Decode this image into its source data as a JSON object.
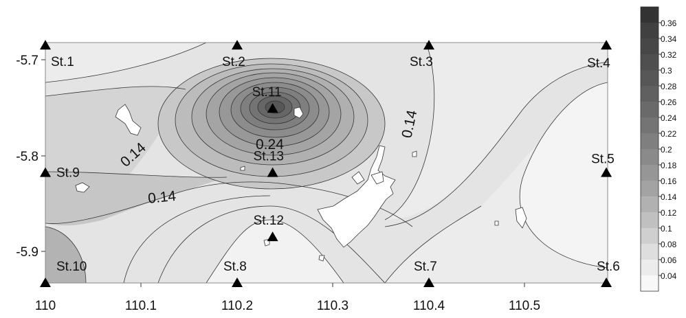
{
  "map": {
    "x_ticks": [
      "110",
      "110.1",
      "110.2",
      "110.3",
      "110.4",
      "110.5"
    ],
    "y_ticks": [
      "-5.7",
      "-5.8",
      "-5.9"
    ],
    "contour_labels": [
      "0.14",
      "0.14",
      "0.24",
      "0.14"
    ],
    "stations": [
      {
        "name": "St.1",
        "lon": 110.0,
        "lat": -5.685
      },
      {
        "name": "St.2",
        "lon": 110.2,
        "lat": -5.685
      },
      {
        "name": "St.3",
        "lon": 110.4,
        "lat": -5.685
      },
      {
        "name": "St.4",
        "lon": 110.585,
        "lat": -5.685
      },
      {
        "name": "St.5",
        "lon": 110.585,
        "lat": -5.818
      },
      {
        "name": "St.6",
        "lon": 110.585,
        "lat": -5.933
      },
      {
        "name": "St.7",
        "lon": 110.4,
        "lat": -5.933
      },
      {
        "name": "St.8",
        "lon": 110.2,
        "lat": -5.933
      },
      {
        "name": "St.9",
        "lon": 110.0,
        "lat": -5.818
      },
      {
        "name": "St.10",
        "lon": 110.0,
        "lat": -5.933
      },
      {
        "name": "St.11",
        "lon": 110.237,
        "lat": -5.751
      },
      {
        "name": "St.12",
        "lon": 110.237,
        "lat": -5.885
      },
      {
        "name": "St.13",
        "lon": 110.237,
        "lat": -5.818
      }
    ],
    "colorbar": {
      "labels": [
        "0.36",
        "0.34",
        "0.32",
        "0.3",
        "0.28",
        "0.26",
        "0.24",
        "0.22",
        "0.2",
        "0.18",
        "0.16",
        "0.14",
        "0.12",
        "0.1",
        "0.08",
        "0.06",
        "0.04"
      ],
      "colors": [
        "#404040",
        "#474747",
        "#4f4f4f",
        "#575757",
        "#606060",
        "#6a6a6a",
        "#747474",
        "#7f7f7f",
        "#8a8a8a",
        "#969696",
        "#a3a3a3",
        "#b1b1b1",
        "#c0c0c0",
        "#cfcfcf",
        "#dedede",
        "#ececec",
        "#f8f8f8"
      ]
    }
  }
}
